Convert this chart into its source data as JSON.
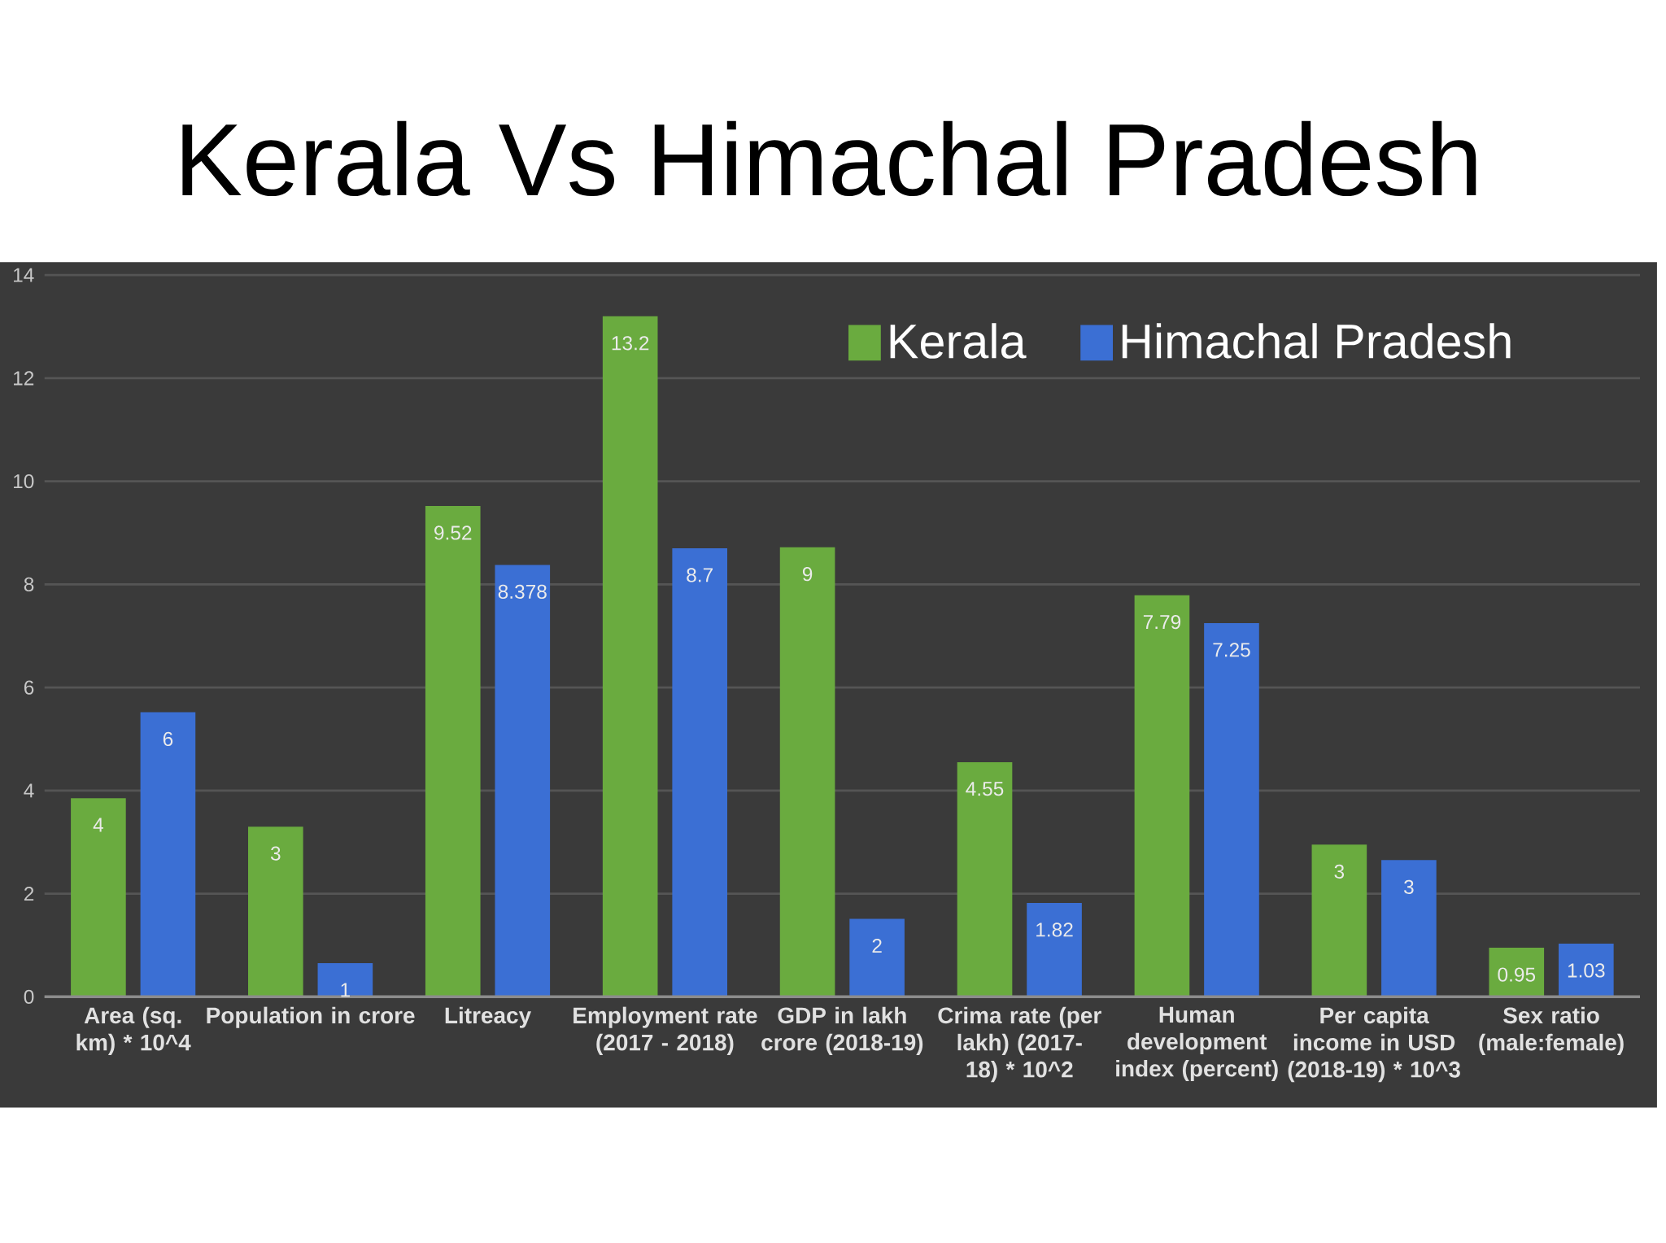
{
  "chart_data": {
    "type": "bar",
    "title": "Kerala Vs Himachal Pradesh",
    "categories": [
      "Area (sq. km) * 10^4",
      "Population in crore",
      "Litreacy",
      "Employment rate (2017 - 2018)",
      "GDP in lakh crore (2018-19)",
      "Crima rate (per lakh) (2017-18) * 10^2",
      "Human development index (percent)",
      "Per capita income in USD (2018-19) * 10^3",
      "Sex ratio (male:female)"
    ],
    "series": [
      {
        "name": "Kerala",
        "color": "#6aab3f",
        "values": [
          3.85,
          3.3,
          9.52,
          13.2,
          8.72,
          4.55,
          7.79,
          2.95,
          0.95
        ],
        "value_labels": [
          "4",
          "3",
          "9.52",
          "13.2",
          "9",
          "4.55",
          "7.79",
          "3",
          "0.95"
        ]
      },
      {
        "name": "Himachal Pradesh",
        "color": "#3b6fd4",
        "values": [
          5.52,
          0.65,
          8.378,
          8.7,
          1.51,
          1.82,
          7.25,
          2.65,
          1.03
        ],
        "value_labels": [
          "6",
          "1",
          "8.378",
          "8.7",
          "2",
          "1.82",
          "7.25",
          "3",
          "1.03"
        ]
      }
    ],
    "ylim": [
      0,
      14
    ],
    "yticks": [
      0,
      2,
      4,
      6,
      8,
      10,
      12,
      14
    ],
    "grid": "y",
    "legend": "top right"
  }
}
